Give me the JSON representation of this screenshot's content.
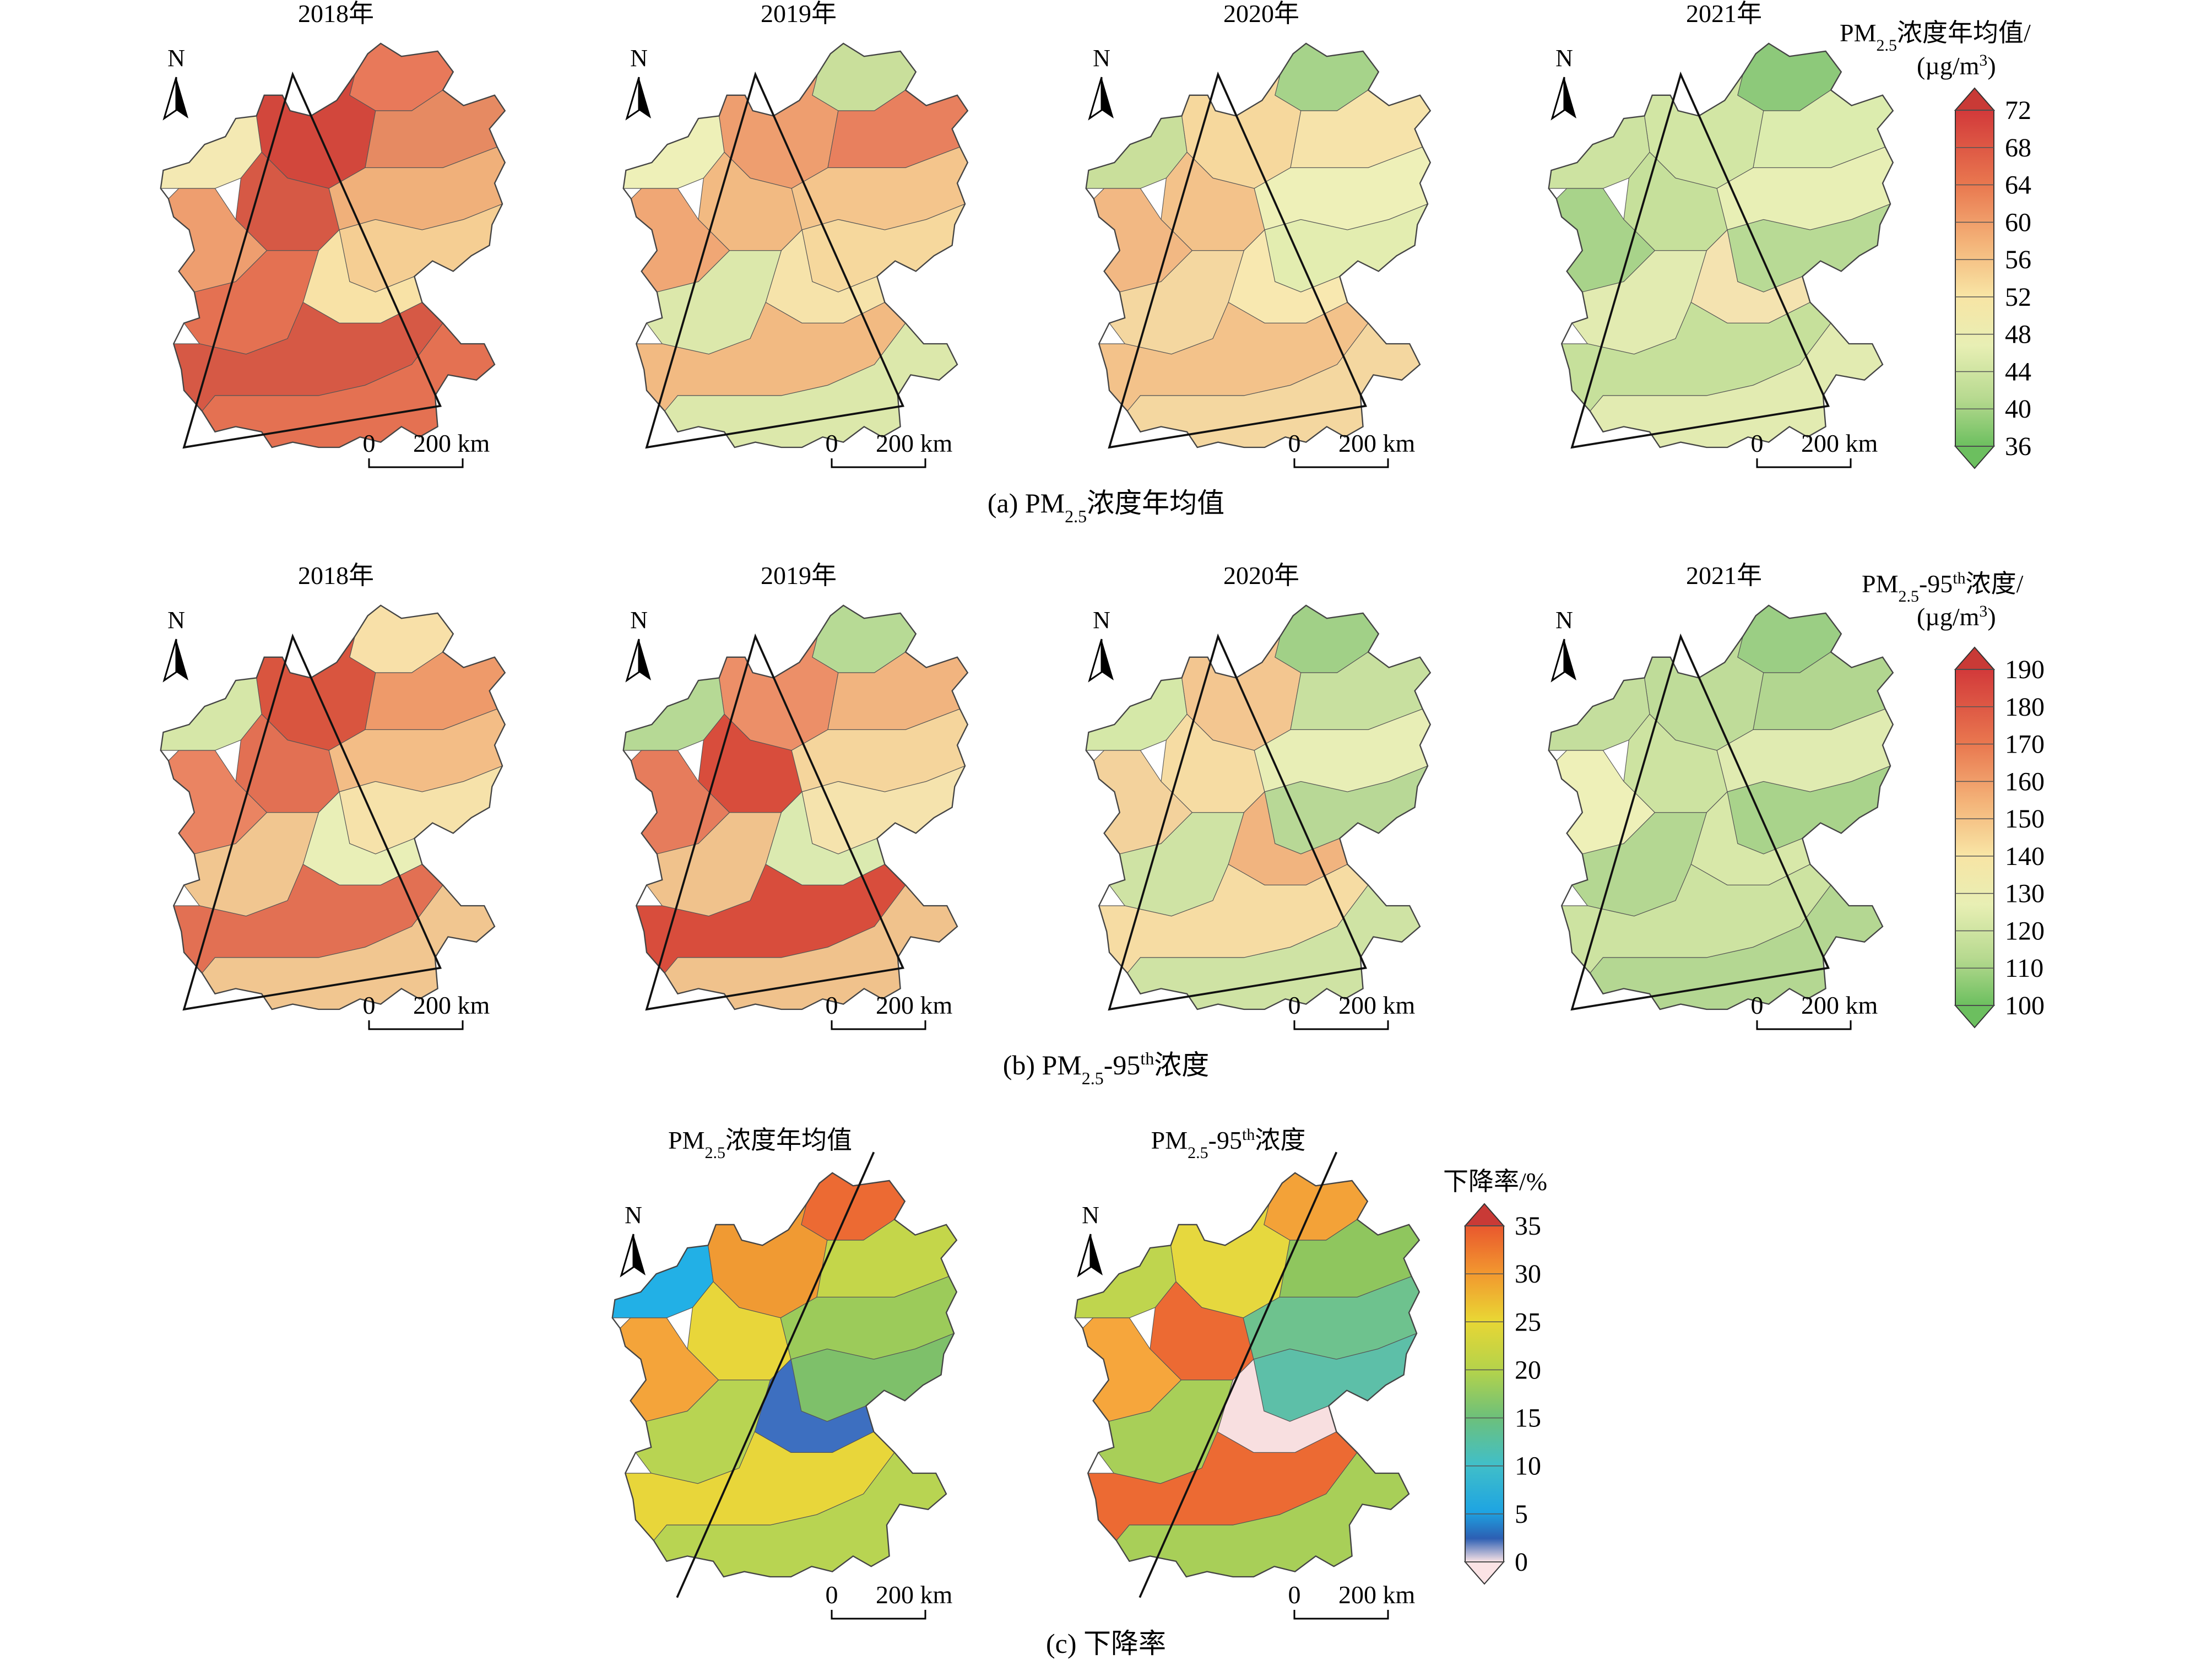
{
  "rows": {
    "a": {
      "caption_prefix": "(a) PM",
      "caption_sub": "2.5",
      "caption_suffix": "浓度年均值",
      "years": [
        "2018年",
        "2019年",
        "2020年",
        "2021年"
      ],
      "legend": {
        "title_line1_prefix": "PM",
        "title_line1_sub": "2.5",
        "title_line1_suffix": "浓度年均值/",
        "title_line2": "(µg/m",
        "title_line2_sup": "3",
        "title_line2_end": ")",
        "ticks": [
          "72",
          "68",
          "64",
          "60",
          "56",
          "52",
          "48",
          "44",
          "40",
          "36"
        ]
      }
    },
    "b": {
      "caption_prefix": "(b) PM",
      "caption_sub": "2.5",
      "caption_mid": "-95",
      "caption_sup": "th",
      "caption_suffix": "浓度",
      "years": [
        "2018年",
        "2019年",
        "2020年",
        "2021年"
      ],
      "legend": {
        "title_line1_prefix": "PM",
        "title_line1_sub": "2.5",
        "title_line1_mid": "-95",
        "title_line1_sup": "th",
        "title_line1_suffix": "浓度/",
        "title_line2": "(µg/m",
        "title_line2_sup": "3",
        "title_line2_end": ")",
        "ticks": [
          "190",
          "180",
          "170",
          "160",
          "150",
          "140",
          "130",
          "120",
          "110",
          "100"
        ]
      }
    },
    "c": {
      "caption": "(c) 下降率",
      "map1_title_prefix": "PM",
      "map1_title_sub": "2.5",
      "map1_title_suffix": "浓度年均值",
      "map2_title_prefix": "PM",
      "map2_title_sub": "2.5",
      "map2_title_mid": "-95",
      "map2_title_sup": "th",
      "map2_title_suffix": "浓度",
      "legend": {
        "title": "下降率/%",
        "ticks": [
          "35",
          "30",
          "25",
          "20",
          "15",
          "10",
          "5",
          "0"
        ]
      }
    }
  },
  "north_label": "N",
  "scalebar": {
    "zero": "0",
    "value": "200 km"
  },
  "colors": {
    "a": {
      "2018": [
        "#e8795a",
        "#d2473c",
        "#d65945",
        "#e68a62",
        "#f0b07a",
        "#f5ce93",
        "#f8e2a6",
        "#f4e9b3",
        "#ee9e6f",
        "#e47152"
      ],
      "2019": [
        "#c9df9b",
        "#ee9e6f",
        "#f2ba82",
        "#e8805e",
        "#f4c58c",
        "#f6d89d",
        "#f6e3aa",
        "#eef0b8",
        "#f0a775",
        "#dce8ab"
      ],
      "2020": [
        "#a6d38a",
        "#f6d89d",
        "#f3c28a",
        "#f6e3aa",
        "#eef0b8",
        "#e3edb0",
        "#f8e8b0",
        "#c9df9b",
        "#f2b883",
        "#f4d7a0"
      ],
      "2021": [
        "#8dc97a",
        "#d2e6a4",
        "#c6e09b",
        "#dcecae",
        "#e8efb5",
        "#b8da95",
        "#f4e3b0",
        "#cde3a1",
        "#a8d38a",
        "#e2ebb1"
      ]
    },
    "b": {
      "2018": [
        "#f8e0a8",
        "#d9553f",
        "#e27053",
        "#ee9a6a",
        "#f3bd86",
        "#f6e2aa",
        "#e9efb7",
        "#d6e7a8",
        "#ea8462",
        "#f1c690"
      ],
      "2019": [
        "#b7da95",
        "#ec8f68",
        "#d84d3c",
        "#f1b47f",
        "#f5d59c",
        "#f5e3ad",
        "#dbeab0",
        "#b6d995",
        "#e67c5c",
        "#f0c28c"
      ],
      "2020": [
        "#a1d087",
        "#f3c690",
        "#f6dca3",
        "#c8e09f",
        "#e8eeb6",
        "#b8d896",
        "#f1b47f",
        "#d5e8a8",
        "#f3d29c",
        "#cfe3a4"
      ],
      "2021": [
        "#9bce84",
        "#bfdc99",
        "#cde3a1",
        "#b2d690",
        "#e0ebb1",
        "#a9d38b",
        "#d8e8a9",
        "#c4de9d",
        "#eef0b8",
        "#b4d792"
      ]
    },
    "c": {
      "m1": [
        "#ec6a33",
        "#f09a33",
        "#e8d63a",
        "#c4d64a",
        "#9ccb5a",
        "#7ec06a",
        "#3d6fc0",
        "#22b0e6",
        "#f4a43a",
        "#b8d452"
      ],
      "m2": [
        "#f3a238",
        "#e6d83e",
        "#ec6a33",
        "#8fc65e",
        "#6ec28e",
        "#5dbfa8",
        "#f8dfe0",
        "#bfd54e",
        "#f6a63c",
        "#a8cf58"
      ]
    }
  }
}
